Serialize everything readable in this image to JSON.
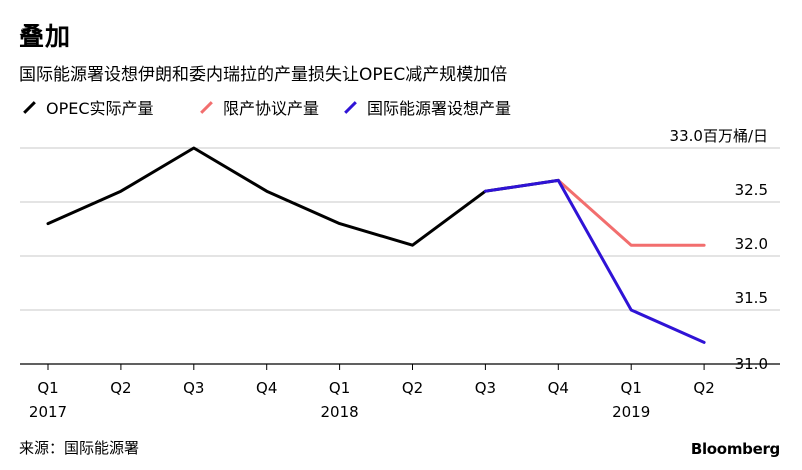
{
  "chart_data": {
    "type": "line",
    "title": "叠加",
    "subtitle": "国际能源署设想伊朗和委内瑞拉的产量损失让OPEC减产规模加倍",
    "categories": [
      "Q1",
      "Q2",
      "Q3",
      "Q4",
      "Q1",
      "Q2",
      "Q3",
      "Q4",
      "Q1",
      "Q2"
    ],
    "year_labels": [
      {
        "index": 0,
        "label": "2017"
      },
      {
        "index": 4,
        "label": "2018"
      },
      {
        "index": 8,
        "label": "2019"
      }
    ],
    "ylim": [
      31.0,
      33.0
    ],
    "yticks": [
      {
        "value": 33.0,
        "label": "33.0百万桶/日"
      },
      {
        "value": 32.5,
        "label": "32.5"
      },
      {
        "value": 32.0,
        "label": "32.0"
      },
      {
        "value": 31.5,
        "label": "31.5"
      },
      {
        "value": 31.0,
        "label": "31.0"
      }
    ],
    "series": [
      {
        "name": "OPEC实际产量",
        "color": "#000000",
        "values": [
          32.3,
          32.6,
          33.0,
          32.6,
          32.3,
          32.1,
          32.6,
          32.7,
          null,
          null
        ]
      },
      {
        "name": "限产协议产量",
        "color": "#f26e6e",
        "values": [
          null,
          null,
          null,
          null,
          null,
          null,
          null,
          32.7,
          32.1,
          32.1
        ]
      },
      {
        "name": "国际能源署设想产量",
        "color": "#2f13d6",
        "values": [
          null,
          null,
          null,
          null,
          null,
          null,
          32.6,
          32.7,
          31.5,
          31.2
        ]
      }
    ],
    "grid": true
  },
  "footer": {
    "source": "来源：国际能源署",
    "brand": "Bloomberg"
  }
}
